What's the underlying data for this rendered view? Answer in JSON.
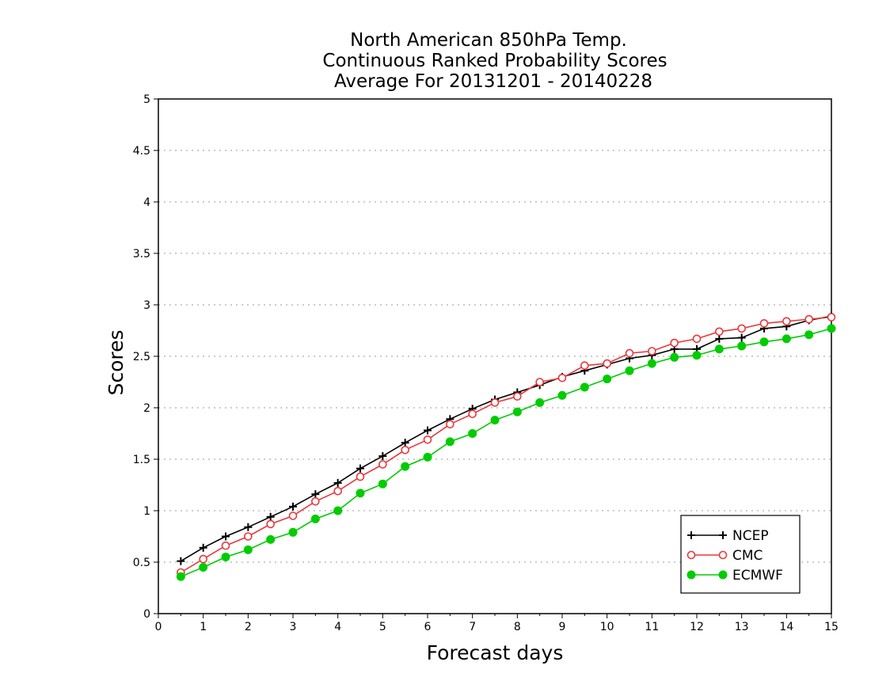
{
  "chart_data": {
    "type": "line",
    "title": [
      "North American 850hPa Temp.",
      "Continuous Ranked Probability Scores",
      "Average For 20131201 - 20140228"
    ],
    "xlabel": "Forecast days",
    "ylabel": "Scores",
    "xlim": [
      0,
      15
    ],
    "ylim": [
      0,
      5
    ],
    "x_ticks": [
      "0",
      "1",
      "2",
      "3",
      "4",
      "5",
      "6",
      "7",
      "8",
      "9",
      "10",
      "11",
      "12",
      "13",
      "14",
      "15"
    ],
    "y_ticks": [
      "0",
      "0.5",
      "1",
      "1.5",
      "2",
      "2.5",
      "3",
      "3.5",
      "4",
      "4.5",
      "5"
    ],
    "grid": "horizontal dotted",
    "legend_position": "bottom-right",
    "x": [
      0.5,
      1,
      1.5,
      2,
      2.5,
      3,
      3.5,
      4,
      4.5,
      5,
      5.5,
      6,
      6.5,
      7,
      7.5,
      8,
      8.5,
      9,
      9.5,
      10,
      10.5,
      11,
      11.5,
      12,
      12.5,
      13,
      13.5,
      14,
      14.5,
      15
    ],
    "series": [
      {
        "name": "NCEP",
        "color": "#000000",
        "marker": "plus",
        "values": [
          0.51,
          0.64,
          0.75,
          0.84,
          0.94,
          1.04,
          1.16,
          1.27,
          1.41,
          1.53,
          1.66,
          1.78,
          1.89,
          1.99,
          2.08,
          2.15,
          2.22,
          2.3,
          2.36,
          2.42,
          2.48,
          2.51,
          2.57,
          2.57,
          2.67,
          2.68,
          2.77,
          2.79,
          2.85,
          2.89
        ]
      },
      {
        "name": "CMC",
        "color": "#e8383b",
        "marker": "open-circle",
        "values": [
          0.4,
          0.53,
          0.66,
          0.75,
          0.87,
          0.95,
          1.09,
          1.19,
          1.33,
          1.45,
          1.59,
          1.69,
          1.84,
          1.94,
          2.05,
          2.11,
          2.25,
          2.29,
          2.41,
          2.43,
          2.53,
          2.55,
          2.63,
          2.67,
          2.74,
          2.77,
          2.82,
          2.84,
          2.86,
          2.88
        ]
      },
      {
        "name": "ECMWF",
        "color": "#00cc00",
        "marker": "filled-circle",
        "values": [
          0.36,
          0.45,
          0.55,
          0.62,
          0.72,
          0.79,
          0.92,
          1.0,
          1.17,
          1.26,
          1.43,
          1.52,
          1.67,
          1.75,
          1.88,
          1.96,
          2.05,
          2.12,
          2.2,
          2.28,
          2.36,
          2.43,
          2.49,
          2.51,
          2.57,
          2.6,
          2.64,
          2.67,
          2.71,
          2.77
        ]
      }
    ]
  }
}
